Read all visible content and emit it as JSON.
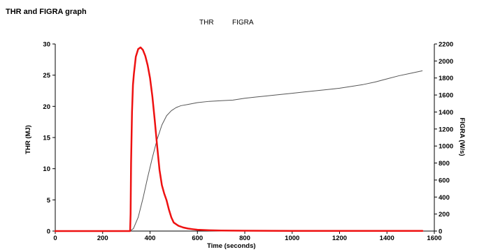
{
  "chart_data": {
    "type": "line",
    "title": "THR and FIGRA graph",
    "legend_position": "top-center",
    "xlabel": "Time (seconds)",
    "ylabel_left": "THR (MJ)",
    "ylabel_right": "FIGRA (W/s)",
    "xlim": [
      0,
      1600
    ],
    "ylim_left": [
      0,
      30
    ],
    "ylim_right": [
      0,
      2200
    ],
    "x_ticks": [
      0,
      200,
      400,
      600,
      800,
      1000,
      1200,
      1400,
      1600
    ],
    "y_ticks_left": [
      0,
      5,
      10,
      15,
      20,
      25,
      30
    ],
    "y_ticks_right": [
      0,
      200,
      400,
      600,
      800,
      1000,
      1200,
      1400,
      1600,
      1800,
      2000,
      2200
    ],
    "grid": false,
    "series": [
      {
        "name": "THR",
        "axis": "left",
        "color": "#555555",
        "x": [
          315,
          330,
          350,
          370,
          390,
          410,
          430,
          450,
          470,
          490,
          510,
          530,
          560,
          600,
          650,
          700,
          750,
          800,
          850,
          900,
          950,
          1000,
          1050,
          1100,
          1150,
          1200,
          1250,
          1300,
          1350,
          1400,
          1450,
          1500,
          1550
        ],
        "y": [
          0,
          0.4,
          2.2,
          5.2,
          8.6,
          11.8,
          14.7,
          17.0,
          18.5,
          19.3,
          19.8,
          20.1,
          20.3,
          20.6,
          20.8,
          20.9,
          21.0,
          21.3,
          21.5,
          21.7,
          21.9,
          22.1,
          22.3,
          22.5,
          22.7,
          22.9,
          23.2,
          23.5,
          23.9,
          24.4,
          24.9,
          25.3,
          25.7
        ]
      },
      {
        "name": "FIGRA",
        "axis": "right",
        "color": "#ee1111",
        "x": [
          0,
          316,
          318,
          320,
          324,
          328,
          332,
          340,
          350,
          360,
          370,
          380,
          390,
          400,
          410,
          420,
          430,
          440,
          450,
          460,
          470,
          480,
          490,
          500,
          520,
          540,
          560,
          580,
          600,
          650,
          700,
          800,
          1000,
          1200,
          1400,
          1550
        ],
        "y": [
          0,
          0,
          200,
          800,
          1400,
          1720,
          1850,
          2050,
          2140,
          2160,
          2130,
          2060,
          1950,
          1800,
          1580,
          1300,
          1000,
          720,
          540,
          440,
          360,
          250,
          160,
          100,
          62,
          42,
          30,
          22,
          15,
          9,
          6,
          4,
          2,
          2,
          2,
          2
        ]
      }
    ]
  }
}
